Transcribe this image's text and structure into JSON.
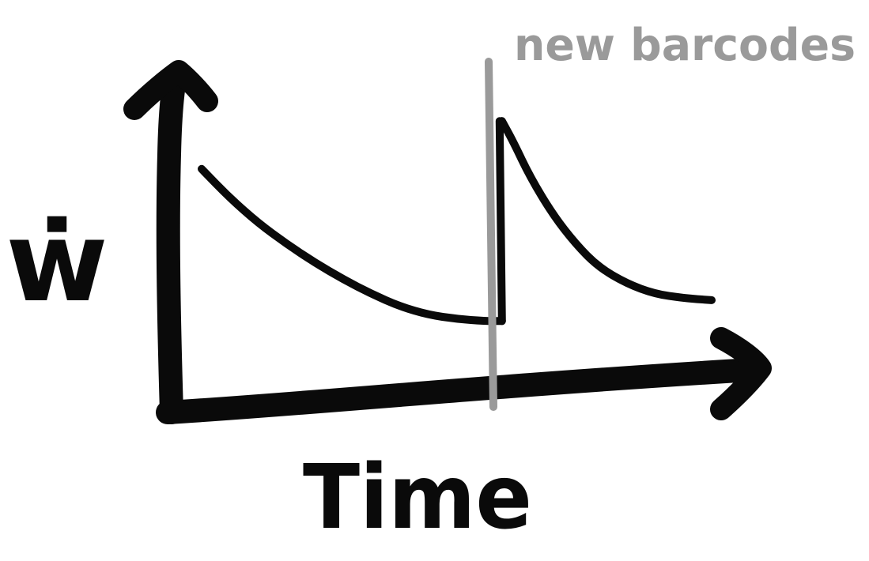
{
  "chart_data": {
    "type": "line",
    "xlabel": "Time",
    "ylabel": "ẇ",
    "annotations": [
      {
        "text": "new barcodes",
        "at_x": 0.53
      }
    ],
    "series": [
      {
        "x": [
          0.0,
          0.05,
          0.1,
          0.15,
          0.2,
          0.25,
          0.3,
          0.35,
          0.4,
          0.45,
          0.5,
          0.53
        ],
        "y": [
          0.82,
          0.68,
          0.56,
          0.46,
          0.37,
          0.29,
          0.22,
          0.16,
          0.12,
          0.1,
          0.09,
          0.09
        ]
      },
      {
        "x": [
          0.53,
          0.55,
          0.58,
          0.62,
          0.66,
          0.7,
          0.75,
          0.8,
          0.85,
          0.9
        ],
        "y": [
          1.05,
          0.95,
          0.78,
          0.6,
          0.46,
          0.35,
          0.27,
          0.22,
          0.2,
          0.19
        ]
      }
    ],
    "colors": {
      "ink": "#0a0a0a",
      "marker": "#9a9a9a"
    }
  }
}
